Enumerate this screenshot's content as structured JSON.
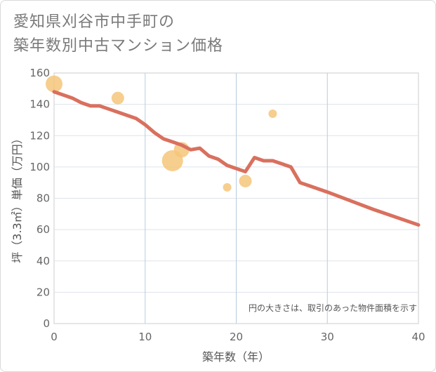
{
  "title_lines": [
    "愛知県刈谷市中手町の",
    "築年数別中古マンション価格"
  ],
  "chart_data": {
    "type": "line+scatter",
    "xlabel": "築年数（年）",
    "ylabel": "坪（3.3㎡）単価（万円）",
    "xlim": [
      0,
      40
    ],
    "ylim": [
      0,
      160
    ],
    "x_ticks": [
      "0",
      "10",
      "20",
      "30",
      "40"
    ],
    "y_ticks": [
      "0",
      "20",
      "40",
      "60",
      "80",
      "100",
      "120",
      "140",
      "160"
    ],
    "annotation": "円の大きさは、取引のあった物件面積を示す",
    "series": [
      {
        "name": "trend",
        "type": "line",
        "color": "#d9705e",
        "x": [
          0,
          1,
          2,
          3,
          4,
          5,
          6,
          7,
          8,
          9,
          10,
          11,
          12,
          13,
          14,
          15,
          16,
          17,
          18,
          19,
          20,
          21,
          22,
          23,
          24,
          25,
          26,
          27,
          28,
          29,
          30,
          35,
          40
        ],
        "y": [
          148,
          146,
          144,
          141,
          139,
          139,
          137,
          135,
          133,
          131,
          127,
          122,
          118,
          116,
          114,
          111,
          112,
          107,
          105,
          101,
          99,
          97,
          106,
          104,
          104,
          102,
          100,
          90,
          88,
          86,
          84,
          73,
          63
        ]
      },
      {
        "name": "transactions",
        "type": "scatter",
        "color": "#f5c57a",
        "points": [
          {
            "x": 0,
            "y": 153,
            "size": 12
          },
          {
            "x": 7,
            "y": 144,
            "size": 9
          },
          {
            "x": 13,
            "y": 104,
            "size": 15
          },
          {
            "x": 14,
            "y": 111,
            "size": 11
          },
          {
            "x": 19,
            "y": 87,
            "size": 6
          },
          {
            "x": 21,
            "y": 91,
            "size": 9
          },
          {
            "x": 24,
            "y": 134,
            "size": 6
          }
        ]
      }
    ]
  }
}
